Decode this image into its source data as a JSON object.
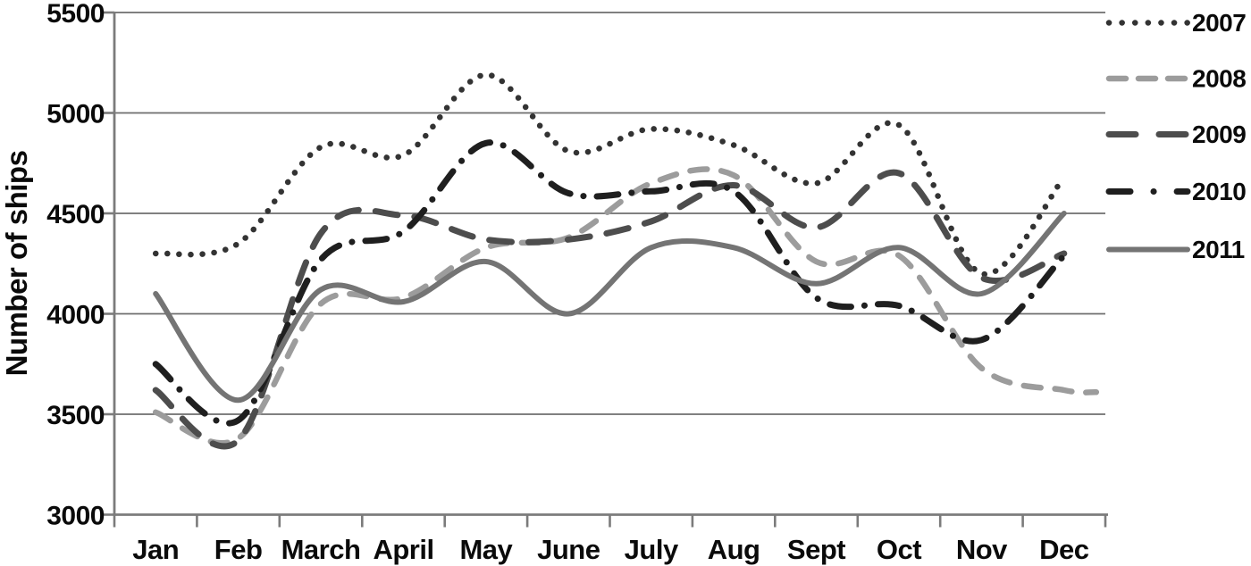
{
  "figure": {
    "kind": "line-chart",
    "background": "#ffffff",
    "text_color": "#0a0a0a",
    "gridline_color": "#6e6e6e",
    "axis_color": "#7b7b7b"
  },
  "chart_data": {
    "type": "line",
    "title": "",
    "xlabel": "",
    "ylabel": "Number of ships",
    "categories": [
      "Jan",
      "Feb",
      "March",
      "April",
      "May",
      "June",
      "July",
      "Aug",
      "Sept",
      "Oct",
      "Nov",
      "Dec"
    ],
    "y_ticks": [
      3000,
      3500,
      4000,
      4500,
      5000,
      5500
    ],
    "ylim": [
      3000,
      5500
    ],
    "grid": true,
    "legend_position": "right",
    "series": [
      {
        "name": "2007",
        "style": "dotted",
        "color": "#333333",
        "values": [
          4300,
          4350,
          4830,
          4790,
          5190,
          4810,
          4920,
          4840,
          4650,
          4940,
          4200,
          4680
        ]
      },
      {
        "name": "2008",
        "style": "dashed",
        "color": "#9c9c9c",
        "values": [
          3510,
          3380,
          4050,
          4080,
          4330,
          4380,
          4650,
          4690,
          4260,
          4290,
          3730,
          3620
        ],
        "extend_right_value": 3610
      },
      {
        "name": "2009",
        "style": "dashed",
        "color": "#4d4d4d",
        "values": [
          3620,
          3370,
          4400,
          4490,
          4370,
          4370,
          4460,
          4640,
          4430,
          4700,
          4180,
          4300
        ]
      },
      {
        "name": "2010",
        "style": "dash-dot",
        "color": "#1f1f1f",
        "values": [
          3750,
          3470,
          4270,
          4410,
          4850,
          4600,
          4610,
          4610,
          4080,
          4040,
          3870,
          4290
        ]
      },
      {
        "name": "2011",
        "style": "solid",
        "color": "#747474",
        "values": [
          4100,
          3570,
          4120,
          4060,
          4260,
          4000,
          4330,
          4330,
          4150,
          4330,
          4100,
          4500
        ]
      }
    ]
  }
}
